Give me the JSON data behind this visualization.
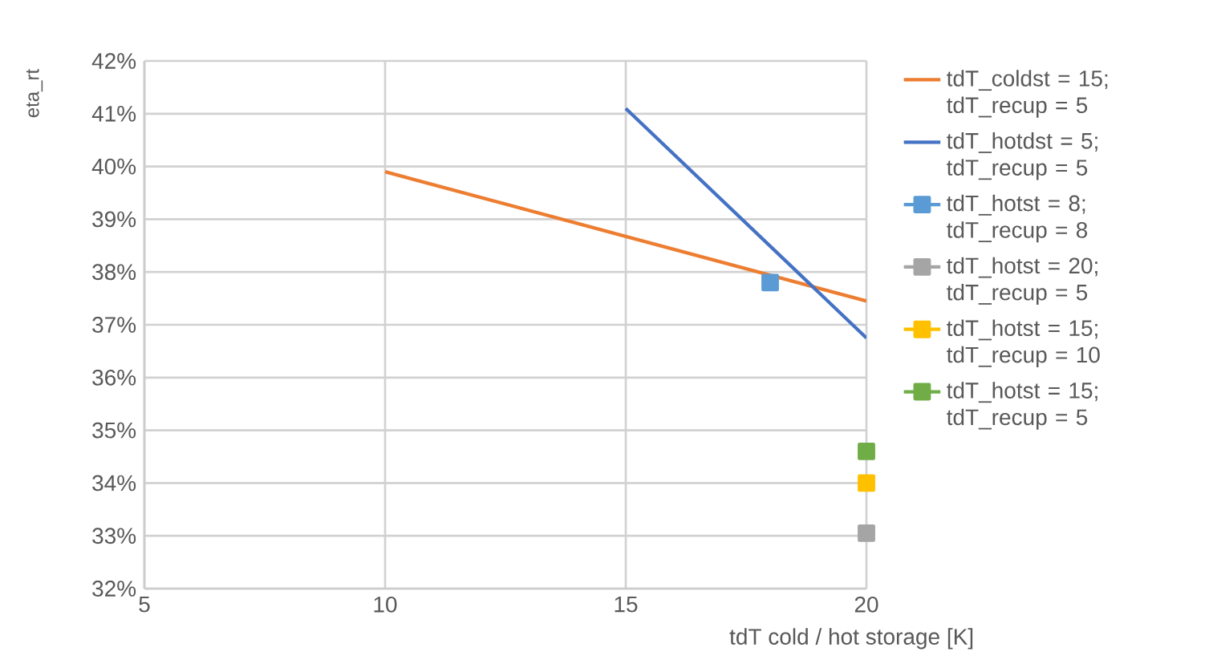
{
  "chart_data": {
    "type": "line",
    "xlabel": "tdT cold / hot storage [K]",
    "ylabel": "eta_rt",
    "xlim": [
      5,
      20
    ],
    "xticks": [
      5,
      10,
      15,
      20
    ],
    "ylim": [
      32,
      42
    ],
    "yticks": [
      {
        "value": 32,
        "label": "32%"
      },
      {
        "value": 33,
        "label": "33%"
      },
      {
        "value": 34,
        "label": "34%"
      },
      {
        "value": 35,
        "label": "35%"
      },
      {
        "value": 36,
        "label": "36%"
      },
      {
        "value": 37,
        "label": "37%"
      },
      {
        "value": 38,
        "label": "38%"
      },
      {
        "value": 39,
        "label": "39%"
      },
      {
        "value": 40,
        "label": "40%"
      },
      {
        "value": 41,
        "label": "41%"
      },
      {
        "value": 42,
        "label": "42%"
      }
    ],
    "grid": true,
    "legend": "right",
    "series": [
      {
        "name": "tdT_coldst = 15; tdT_recup = 5",
        "color": "#ed7d31",
        "x": [
          10,
          20
        ],
        "values": [
          39.9,
          37.45
        ],
        "marker": "none"
      },
      {
        "name": "tdT_hotdst = 5; tdT_recup = 5",
        "color": "#4472c4",
        "x": [
          15,
          20
        ],
        "values": [
          41.1,
          36.75
        ],
        "marker": "none"
      },
      {
        "name": "tdT_hotst = 8; tdT_recup = 8",
        "color": "#5b9bd5",
        "x": [
          18
        ],
        "values": [
          37.8
        ],
        "marker": "square"
      },
      {
        "name": "tdT_hotst = 20; tdT_recup = 5",
        "color": "#a5a5a5",
        "x": [
          20
        ],
        "values": [
          33.05
        ],
        "marker": "square"
      },
      {
        "name": "tdT_hotst = 15; tdT_recup = 10",
        "color": "#ffc000",
        "x": [
          20
        ],
        "values": [
          34.0
        ],
        "marker": "square"
      },
      {
        "name": "tdT_hotst = 15; tdT_recup = 5",
        "color": "#70ad47",
        "x": [
          20
        ],
        "values": [
          34.6
        ],
        "marker": "square"
      }
    ]
  }
}
